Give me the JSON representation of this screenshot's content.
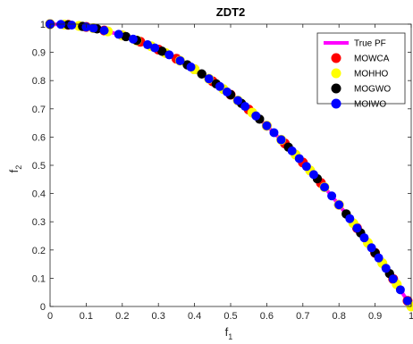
{
  "chart_data": {
    "type": "scatter",
    "title": "ZDT2",
    "xlabel": "f",
    "xlabel_sub": "1",
    "ylabel": "f",
    "ylabel_sub": "2",
    "xlim": [
      0,
      1
    ],
    "ylim": [
      0,
      1
    ],
    "xticks": [
      "0",
      "0.1",
      "0.2",
      "0.3",
      "0.4",
      "0.5",
      "0.6",
      "0.7",
      "0.8",
      "0.9",
      "1"
    ],
    "yticks": [
      "0",
      "0.1",
      "0.2",
      "0.3",
      "0.4",
      "0.5",
      "0.6",
      "0.7",
      "0.8",
      "0.9",
      "1"
    ],
    "grid": false,
    "legend_position": "top-right",
    "true_pf": {
      "name": "True PF",
      "color": "#ff00ff",
      "x": [
        0,
        0.05,
        0.1,
        0.15,
        0.2,
        0.25,
        0.3,
        0.35,
        0.4,
        0.45,
        0.5,
        0.55,
        0.6,
        0.65,
        0.7,
        0.75,
        0.8,
        0.85,
        0.9,
        0.95,
        1.0
      ],
      "y": [
        1,
        0.9975,
        0.99,
        0.9775,
        0.96,
        0.9375,
        0.91,
        0.8775,
        0.84,
        0.7975,
        0.75,
        0.6975,
        0.64,
        0.5775,
        0.51,
        0.4375,
        0.36,
        0.2775,
        0.19,
        0.0975,
        0.0
      ]
    },
    "series": [
      {
        "name": "MOWCA",
        "color": "#ff0000",
        "x": [
          0.0,
          0.05,
          0.1,
          0.15,
          0.2,
          0.25,
          0.3,
          0.35,
          0.4,
          0.45,
          0.5,
          0.55,
          0.6,
          0.65,
          0.7,
          0.75,
          0.8,
          0.85,
          0.9,
          0.95,
          0.99
        ],
        "y": [
          1.0,
          0.9975,
          0.99,
          0.9775,
          0.96,
          0.9375,
          0.91,
          0.8775,
          0.84,
          0.7975,
          0.75,
          0.6975,
          0.64,
          0.5775,
          0.51,
          0.4375,
          0.36,
          0.2775,
          0.19,
          0.0975,
          0.0199
        ]
      },
      {
        "name": "MOHHO",
        "color": "#ffff00",
        "x": [
          0.0,
          0.04,
          0.08,
          0.12,
          0.16,
          0.2,
          0.24,
          0.28,
          0.32,
          0.36,
          0.4,
          0.44,
          0.48,
          0.52,
          0.56,
          0.6,
          0.64,
          0.68,
          0.72,
          0.76,
          0.8,
          0.84,
          0.88,
          0.92,
          0.96,
          1.0
        ],
        "y": [
          1.0,
          0.9984,
          0.9936,
          0.9856,
          0.9744,
          0.96,
          0.9424,
          0.9216,
          0.8976,
          0.8704,
          0.84,
          0.8064,
          0.7696,
          0.7296,
          0.6864,
          0.64,
          0.5904,
          0.5376,
          0.4816,
          0.4224,
          0.36,
          0.2944,
          0.2256,
          0.1536,
          0.0784,
          0.0
        ]
      },
      {
        "name": "MOGWO",
        "color": "#000000",
        "x": [
          0.0,
          0.05,
          0.09,
          0.13,
          0.21,
          0.24,
          0.31,
          0.38,
          0.42,
          0.46,
          0.5,
          0.53,
          0.58,
          0.66,
          0.74,
          0.82,
          0.86,
          0.9,
          0.94
        ],
        "y": [
          1.0,
          0.9975,
          0.9919,
          0.9831,
          0.9559,
          0.9424,
          0.9039,
          0.8556,
          0.8236,
          0.7884,
          0.75,
          0.7191,
          0.6636,
          0.5644,
          0.4524,
          0.3276,
          0.2604,
          0.19,
          0.1164
        ]
      },
      {
        "name": "MOIWO",
        "color": "#0000ff",
        "x": [
          0.0,
          0.03,
          0.06,
          0.1,
          0.12,
          0.15,
          0.19,
          0.23,
          0.27,
          0.29,
          0.33,
          0.36,
          0.39,
          0.44,
          0.47,
          0.49,
          0.52,
          0.54,
          0.57,
          0.6,
          0.62,
          0.64,
          0.67,
          0.69,
          0.71,
          0.73,
          0.76,
          0.78,
          0.8,
          0.83,
          0.85,
          0.87,
          0.89,
          0.91,
          0.93,
          0.95,
          0.97,
          0.99
        ],
        "y": [
          1.0,
          0.9991,
          0.9964,
          0.99,
          0.9856,
          0.9775,
          0.9639,
          0.9471,
          0.9271,
          0.9159,
          0.8911,
          0.8704,
          0.8479,
          0.8064,
          0.7791,
          0.7599,
          0.7296,
          0.7084,
          0.6751,
          0.64,
          0.6156,
          0.5904,
          0.5511,
          0.5239,
          0.4959,
          0.4671,
          0.4224,
          0.3916,
          0.36,
          0.3111,
          0.2775,
          0.2431,
          0.2079,
          0.1719,
          0.1351,
          0.0975,
          0.0591,
          0.0199
        ]
      }
    ]
  }
}
